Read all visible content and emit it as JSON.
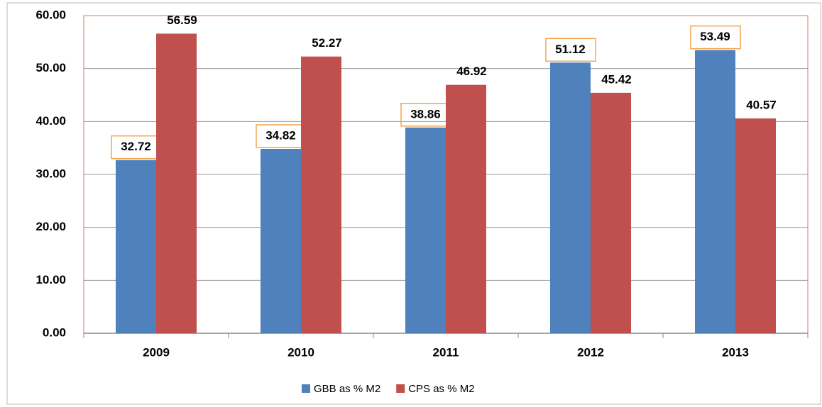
{
  "chart_data": {
    "type": "bar",
    "categories": [
      "2009",
      "2010",
      "2011",
      "2012",
      "2013"
    ],
    "series": [
      {
        "name": "GBB as % M2",
        "color": "#4f81bd",
        "values": [
          32.72,
          34.82,
          38.86,
          51.12,
          53.49
        ]
      },
      {
        "name": "CPS as % M2",
        "color": "#c0504d",
        "values": [
          56.59,
          52.27,
          46.92,
          45.42,
          40.57
        ]
      }
    ],
    "ylim": [
      0,
      60
    ],
    "yticks": [
      {
        "value": 0,
        "label": "0.00"
      },
      {
        "value": 10,
        "label": "10.00"
      },
      {
        "value": 20,
        "label": "20.00"
      },
      {
        "value": 30,
        "label": "30.00"
      },
      {
        "value": 40,
        "label": "40.00"
      },
      {
        "value": 50,
        "label": "50.00"
      },
      {
        "value": 60,
        "label": "60.00"
      }
    ],
    "grid": true,
    "legend": "bottom"
  }
}
